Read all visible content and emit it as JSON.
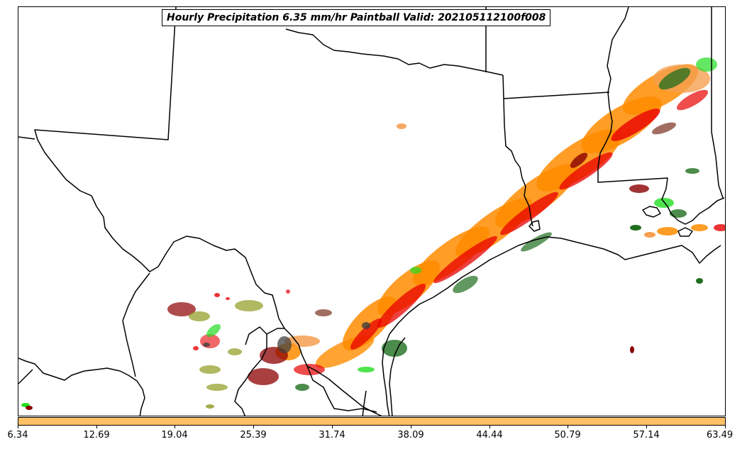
{
  "title": "Hourly Precipitation 6.35 mm/hr Paintball Valid: 202105112100f008",
  "colorbar": {
    "color": "#ffc066",
    "ticks": [
      "6.34",
      "12.69",
      "19.04",
      "25.39",
      "31.74",
      "38.09",
      "44.44",
      "50.79",
      "57.14",
      "63.49"
    ]
  },
  "paintball_colors": {
    "orange": "#ff8c00",
    "light_orange": "#f5a050",
    "red": "#e80000",
    "dark_red": "#8b0000",
    "bright_green": "#22dd22",
    "dark_green": "#1e6e1e",
    "olive": "#8f9a1e",
    "brown": "#8b4a3a",
    "dark_gray": "#404040"
  }
}
